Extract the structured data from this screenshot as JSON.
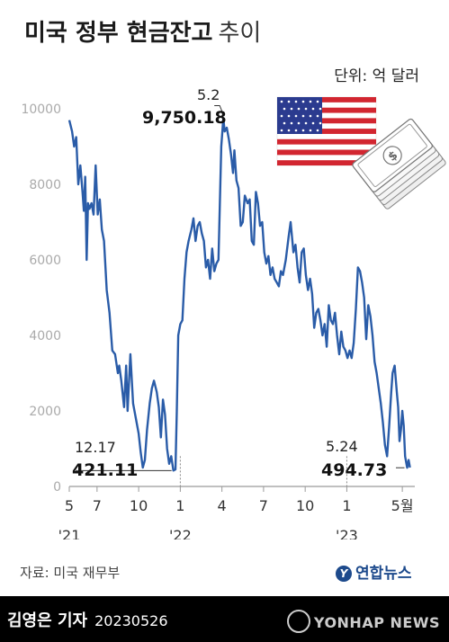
{
  "header": {
    "title_main": "미국 정부 현금잔고",
    "title_sub": "추이",
    "unit": "단위: 억 달러"
  },
  "source": "자료: 미국 재무부",
  "brand": {
    "logo_text": "연합뉴스",
    "agency": "YONHAP NEWS"
  },
  "footer": {
    "byline": "김영은 기자",
    "date": "20230526"
  },
  "colors": {
    "line": "#2a5ca8",
    "axis": "#999999",
    "grid_tick": "#aaaaaa",
    "footer_bg": "#000000"
  },
  "icons": [
    "us-flag-icon",
    "money-stack-icon"
  ],
  "chart_data": {
    "type": "line",
    "title": "미국 정부 현금잔고 추이",
    "ylabel": "",
    "xlabel": "",
    "unit": "억 달러",
    "ylim": [
      0,
      10000
    ],
    "yticks": [
      0,
      2000,
      4000,
      6000,
      8000,
      10000
    ],
    "xlim": [
      0,
      24.9
    ],
    "xticks": [
      {
        "label": "5",
        "year": "'21",
        "x": 0
      },
      {
        "label": "7",
        "x": 2
      },
      {
        "label": "10",
        "x": 5
      },
      {
        "label": "1",
        "year": "'22",
        "x": 8
      },
      {
        "label": "4",
        "x": 11
      },
      {
        "label": "7",
        "x": 14
      },
      {
        "label": "10",
        "x": 17
      },
      {
        "label": "1",
        "year": "'23",
        "x": 20
      },
      {
        "label": "5월",
        "x": 24
      }
    ],
    "series": [
      {
        "values": [
          [
            0.0,
            9700
          ],
          [
            0.2,
            9400
          ],
          [
            0.35,
            9000
          ],
          [
            0.5,
            9250
          ],
          [
            0.65,
            8000
          ],
          [
            0.8,
            8500
          ],
          [
            0.95,
            7800
          ],
          [
            1.05,
            7300
          ],
          [
            1.15,
            8200
          ],
          [
            1.25,
            6000
          ],
          [
            1.35,
            7500
          ],
          [
            1.45,
            7350
          ],
          [
            1.6,
            7500
          ],
          [
            1.75,
            7200
          ],
          [
            1.9,
            8500
          ],
          [
            2.05,
            7200
          ],
          [
            2.2,
            7600
          ],
          [
            2.35,
            6800
          ],
          [
            2.5,
            6500
          ],
          [
            2.7,
            5200
          ],
          [
            2.9,
            4600
          ],
          [
            3.1,
            3600
          ],
          [
            3.3,
            3500
          ],
          [
            3.5,
            3000
          ],
          [
            3.6,
            3200
          ],
          [
            3.75,
            2800
          ],
          [
            3.95,
            2100
          ],
          [
            4.1,
            3200
          ],
          [
            4.2,
            2000
          ],
          [
            4.4,
            3500
          ],
          [
            4.6,
            2200
          ],
          [
            4.8,
            1800
          ],
          [
            5.0,
            1400
          ],
          [
            5.15,
            900
          ],
          [
            5.3,
            500
          ],
          [
            5.45,
            700
          ],
          [
            5.6,
            1500
          ],
          [
            5.8,
            2200
          ],
          [
            5.95,
            2600
          ],
          [
            6.1,
            2800
          ],
          [
            6.3,
            2500
          ],
          [
            6.45,
            2100
          ],
          [
            6.6,
            1300
          ],
          [
            6.75,
            2300
          ],
          [
            6.9,
            1900
          ],
          [
            7.05,
            1000
          ],
          [
            7.2,
            600
          ],
          [
            7.35,
            800
          ],
          [
            7.5,
            421.11
          ],
          [
            7.65,
            450
          ],
          [
            7.75,
            2000
          ],
          [
            7.85,
            4000
          ],
          [
            8.0,
            4300
          ],
          [
            8.15,
            4400
          ],
          [
            8.3,
            5500
          ],
          [
            8.45,
            6200
          ],
          [
            8.6,
            6500
          ],
          [
            8.8,
            6800
          ],
          [
            8.95,
            7100
          ],
          [
            9.1,
            6500
          ],
          [
            9.25,
            6900
          ],
          [
            9.4,
            7000
          ],
          [
            9.55,
            6700
          ],
          [
            9.7,
            6500
          ],
          [
            9.85,
            5800
          ],
          [
            10.0,
            6000
          ],
          [
            10.15,
            5500
          ],
          [
            10.3,
            6300
          ],
          [
            10.45,
            5700
          ],
          [
            10.6,
            5900
          ],
          [
            10.75,
            6000
          ],
          [
            10.95,
            9000
          ],
          [
            11.1,
            9750.18
          ],
          [
            11.2,
            9400
          ],
          [
            11.35,
            9500
          ],
          [
            11.5,
            9200
          ],
          [
            11.65,
            8800
          ],
          [
            11.8,
            8300
          ],
          [
            11.9,
            8900
          ],
          [
            12.05,
            8100
          ],
          [
            12.2,
            7900
          ],
          [
            12.35,
            6900
          ],
          [
            12.5,
            7000
          ],
          [
            12.65,
            7700
          ],
          [
            12.85,
            7500
          ],
          [
            13.0,
            7600
          ],
          [
            13.15,
            6500
          ],
          [
            13.3,
            6400
          ],
          [
            13.45,
            7800
          ],
          [
            13.6,
            7500
          ],
          [
            13.75,
            6900
          ],
          [
            13.9,
            7000
          ],
          [
            14.05,
            6200
          ],
          [
            14.2,
            5900
          ],
          [
            14.35,
            6100
          ],
          [
            14.5,
            5600
          ],
          [
            14.65,
            5800
          ],
          [
            14.8,
            5500
          ],
          [
            14.95,
            5400
          ],
          [
            15.1,
            5300
          ],
          [
            15.25,
            5700
          ],
          [
            15.4,
            5600
          ],
          [
            15.6,
            6000
          ],
          [
            15.8,
            6600
          ],
          [
            15.95,
            7000
          ],
          [
            16.15,
            6200
          ],
          [
            16.3,
            6400
          ],
          [
            16.45,
            5800
          ],
          [
            16.6,
            5400
          ],
          [
            16.75,
            6200
          ],
          [
            16.9,
            6300
          ],
          [
            17.05,
            5600
          ],
          [
            17.2,
            5200
          ],
          [
            17.35,
            5500
          ],
          [
            17.5,
            5100
          ],
          [
            17.65,
            4200
          ],
          [
            17.8,
            4600
          ],
          [
            17.95,
            4700
          ],
          [
            18.1,
            4400
          ],
          [
            18.25,
            4000
          ],
          [
            18.4,
            4300
          ],
          [
            18.55,
            3700
          ],
          [
            18.7,
            4800
          ],
          [
            18.85,
            4400
          ],
          [
            19.0,
            4300
          ],
          [
            19.15,
            4600
          ],
          [
            19.3,
            4000
          ],
          [
            19.45,
            3500
          ],
          [
            19.6,
            4100
          ],
          [
            19.75,
            3700
          ],
          [
            19.9,
            3600
          ],
          [
            20.05,
            3400
          ],
          [
            20.2,
            3600
          ],
          [
            20.35,
            3400
          ],
          [
            20.5,
            3800
          ],
          [
            20.65,
            4700
          ],
          [
            20.8,
            5800
          ],
          [
            20.95,
            5700
          ],
          [
            21.1,
            5400
          ],
          [
            21.25,
            5000
          ],
          [
            21.4,
            3900
          ],
          [
            21.55,
            4800
          ],
          [
            21.7,
            4500
          ],
          [
            21.85,
            4000
          ],
          [
            22.0,
            3300
          ],
          [
            22.15,
            3000
          ],
          [
            22.3,
            2600
          ],
          [
            22.45,
            2200
          ],
          [
            22.6,
            1700
          ],
          [
            22.75,
            1100
          ],
          [
            22.9,
            800
          ],
          [
            23.05,
            1600
          ],
          [
            23.2,
            2500
          ],
          [
            23.3,
            3000
          ],
          [
            23.45,
            3200
          ],
          [
            23.6,
            2500
          ],
          [
            23.7,
            2100
          ],
          [
            23.8,
            1200
          ],
          [
            23.9,
            1500
          ],
          [
            24.0,
            2000
          ],
          [
            24.1,
            1600
          ],
          [
            24.2,
            800
          ],
          [
            24.35,
            494.73
          ],
          [
            24.45,
            700
          ],
          [
            24.55,
            500
          ]
        ]
      }
    ],
    "annotations": [
      {
        "date": "12.17",
        "value": "421.11",
        "x": 7.5,
        "y": 421.11
      },
      {
        "date": "5.2",
        "value": "9,750.18",
        "x": 11.1,
        "y": 9750.18
      },
      {
        "date": "5.24",
        "value": "494.73",
        "x": 24.35,
        "y": 494.73
      }
    ]
  }
}
